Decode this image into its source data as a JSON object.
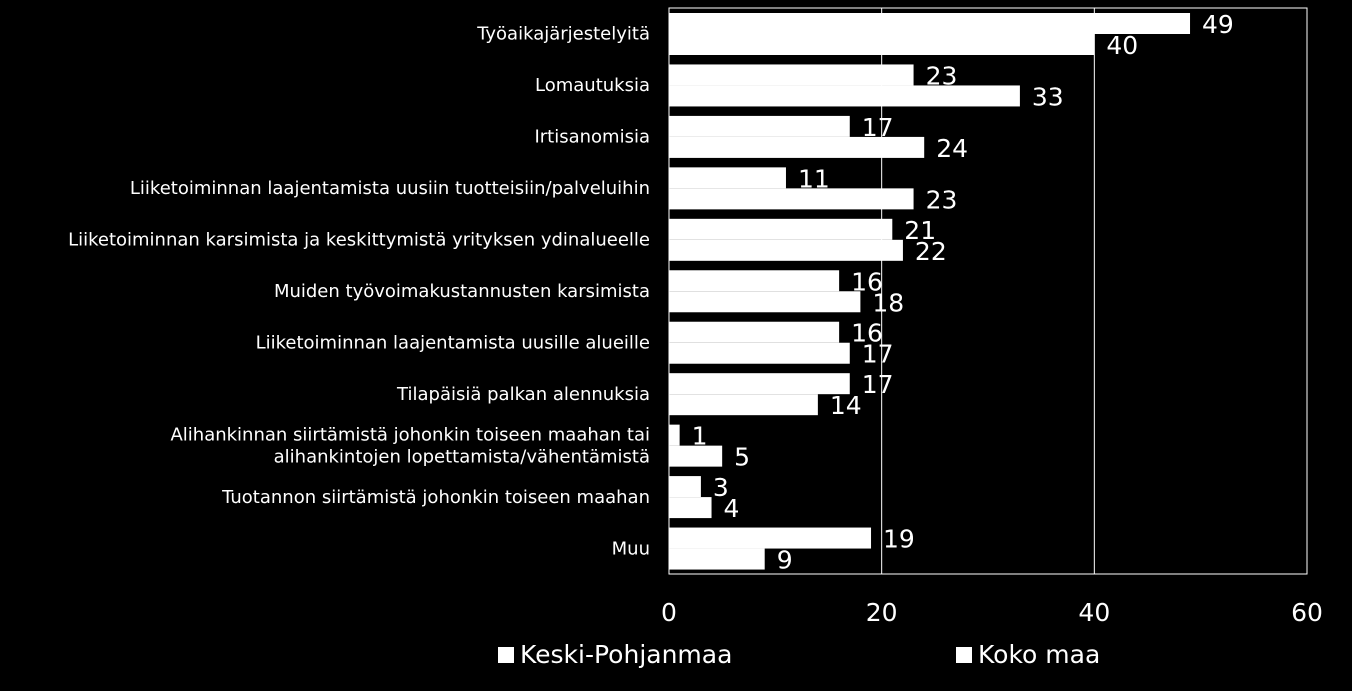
{
  "chart_data": {
    "type": "bar",
    "orientation": "horizontal",
    "categories": [
      [
        "Työaikajärjestelyitä"
      ],
      [
        "Lomautuksia"
      ],
      [
        "Irtisanomisia"
      ],
      [
        "Liiketoiminnan laajentamista uusiin tuotteisiin/palveluihin"
      ],
      [
        "Liiketoiminnan karsimista ja keskittymistä yrityksen ydinalueelle"
      ],
      [
        "Muiden työvoimakustannusten karsimista"
      ],
      [
        "Liiketoiminnan laajentamista uusille alueille"
      ],
      [
        "Tilapäisiä palkan alennuksia"
      ],
      [
        "Alihankinnan siirtämistä johonkin toiseen maahan tai",
        "alihankintojen lopettamista/vähentämistä"
      ],
      [
        "Tuotannon siirtämistä johonkin toiseen maahan"
      ],
      [
        "Muu"
      ]
    ],
    "series": [
      {
        "name": "Keski-Pohjanmaa",
        "values": [
          49,
          23,
          17,
          11,
          21,
          16,
          16,
          17,
          1,
          3,
          19
        ]
      },
      {
        "name": "Koko maa",
        "values": [
          40,
          33,
          24,
          23,
          22,
          18,
          17,
          14,
          5,
          4,
          9
        ]
      }
    ],
    "xlim": [
      0,
      60
    ],
    "xticks": [
      "0",
      "20",
      "40",
      "60"
    ],
    "grid": true,
    "legend_position": "bottom",
    "colors": {
      "background": "#000000",
      "bars": "#ffffff",
      "grid": "#ffffff",
      "text": "#ffffff"
    }
  }
}
